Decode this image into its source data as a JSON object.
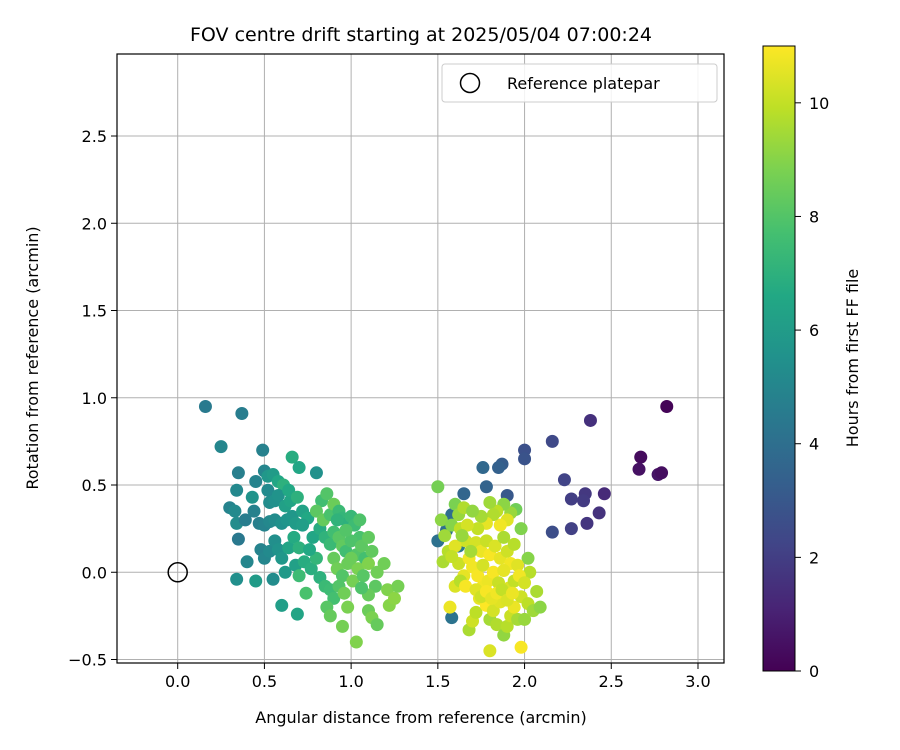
{
  "chart_data": {
    "type": "scatter",
    "title": "FOV centre drift starting at 2025/05/04 07:00:24",
    "xlabel": "Angular distance from reference (arcmin)",
    "ylabel": "Rotation from reference (arcmin)",
    "xlim": [
      -0.35,
      3.15
    ],
    "ylim": [
      -0.52,
      2.97
    ],
    "xticks": [
      0.0,
      0.5,
      1.0,
      1.5,
      2.0,
      2.5,
      3.0
    ],
    "xtick_labels": [
      "0.0",
      "0.5",
      "1.0",
      "1.5",
      "2.0",
      "2.5",
      "3.0"
    ],
    "yticks": [
      -0.5,
      0.0,
      0.5,
      1.0,
      1.5,
      2.0,
      2.5
    ],
    "ytick_labels": [
      "−0.5",
      "0.0",
      "0.5",
      "1.0",
      "1.5",
      "2.0",
      "2.5"
    ],
    "grid": true,
    "legend": {
      "placement": "top-right",
      "label": "Reference platepar"
    },
    "reference_marker": {
      "x": 0.0,
      "y": 0.0
    },
    "colorbar": {
      "label": "Hours from first FF file",
      "colormap": "viridis",
      "range": [
        0,
        11
      ],
      "ticks": [
        0,
        2,
        4,
        6,
        8,
        10
      ],
      "tick_labels": [
        "0",
        "2",
        "4",
        "6",
        "8",
        "10"
      ]
    },
    "points": [
      {
        "x": 2.82,
        "y": 0.95,
        "c": 0.1
      },
      {
        "x": 2.67,
        "y": 0.66,
        "c": 0.3
      },
      {
        "x": 2.66,
        "y": 0.59,
        "c": 0.5
      },
      {
        "x": 2.77,
        "y": 0.56,
        "c": 0.6
      },
      {
        "x": 2.79,
        "y": 0.57,
        "c": 0.4
      },
      {
        "x": 2.46,
        "y": 0.45,
        "c": 1.3
      },
      {
        "x": 2.38,
        "y": 0.87,
        "c": 1.5
      },
      {
        "x": 2.43,
        "y": 0.34,
        "c": 1.6
      },
      {
        "x": 2.36,
        "y": 0.28,
        "c": 1.7
      },
      {
        "x": 2.35,
        "y": 0.45,
        "c": 1.8
      },
      {
        "x": 2.34,
        "y": 0.41,
        "c": 1.9
      },
      {
        "x": 2.27,
        "y": 0.42,
        "c": 2.0
      },
      {
        "x": 2.27,
        "y": 0.25,
        "c": 2.1
      },
      {
        "x": 2.23,
        "y": 0.53,
        "c": 2.2
      },
      {
        "x": 2.16,
        "y": 0.75,
        "c": 2.4
      },
      {
        "x": 2.16,
        "y": 0.23,
        "c": 2.6
      },
      {
        "x": 2.0,
        "y": 0.7,
        "c": 2.7
      },
      {
        "x": 2.0,
        "y": 0.65,
        "c": 2.8
      },
      {
        "x": 1.9,
        "y": 0.44,
        "c": 3.0
      },
      {
        "x": 1.87,
        "y": 0.62,
        "c": 3.2
      },
      {
        "x": 1.85,
        "y": 0.6,
        "c": 3.4
      },
      {
        "x": 1.78,
        "y": 0.49,
        "c": 3.5
      },
      {
        "x": 1.76,
        "y": 0.6,
        "c": 3.7
      },
      {
        "x": 1.65,
        "y": 0.45,
        "c": 3.6
      },
      {
        "x": 1.58,
        "y": 0.33,
        "c": 3.9
      },
      {
        "x": 1.55,
        "y": 0.24,
        "c": 4.0
      },
      {
        "x": 1.5,
        "y": 0.18,
        "c": 4.1
      },
      {
        "x": 1.58,
        "y": -0.26,
        "c": 4.2
      },
      {
        "x": 1.62,
        "y": 0.15,
        "c": 4.3
      },
      {
        "x": 0.16,
        "y": 0.95,
        "c": 4.5
      },
      {
        "x": 0.37,
        "y": 0.91,
        "c": 4.6
      },
      {
        "x": 0.49,
        "y": 0.7,
        "c": 4.8
      },
      {
        "x": 0.35,
        "y": 0.57,
        "c": 4.7
      },
      {
        "x": 0.25,
        "y": 0.72,
        "c": 5.0
      },
      {
        "x": 0.34,
        "y": 0.47,
        "c": 5.1
      },
      {
        "x": 0.3,
        "y": 0.37,
        "c": 4.9
      },
      {
        "x": 0.33,
        "y": 0.35,
        "c": 5.2
      },
      {
        "x": 0.34,
        "y": 0.28,
        "c": 5.3
      },
      {
        "x": 0.35,
        "y": 0.19,
        "c": 4.4
      },
      {
        "x": 0.39,
        "y": 0.3,
        "c": 4.6
      },
      {
        "x": 0.4,
        "y": 0.06,
        "c": 5.0
      },
      {
        "x": 0.34,
        "y": -0.04,
        "c": 5.4
      },
      {
        "x": 0.45,
        "y": -0.05,
        "c": 6.0
      },
      {
        "x": 0.43,
        "y": 0.43,
        "c": 5.6
      },
      {
        "x": 0.44,
        "y": 0.35,
        "c": 4.8
      },
      {
        "x": 0.45,
        "y": 0.52,
        "c": 4.9
      },
      {
        "x": 0.5,
        "y": 0.58,
        "c": 5.0
      },
      {
        "x": 0.52,
        "y": 0.47,
        "c": 5.2
      },
      {
        "x": 0.52,
        "y": 0.55,
        "c": 5.8
      },
      {
        "x": 0.55,
        "y": 0.56,
        "c": 6.0
      },
      {
        "x": 0.58,
        "y": 0.52,
        "c": 6.5
      },
      {
        "x": 0.61,
        "y": 0.5,
        "c": 7.0
      },
      {
        "x": 0.53,
        "y": 0.4,
        "c": 5.3
      },
      {
        "x": 0.56,
        "y": 0.41,
        "c": 5.5
      },
      {
        "x": 0.58,
        "y": 0.44,
        "c": 5.6
      },
      {
        "x": 0.47,
        "y": 0.28,
        "c": 4.7
      },
      {
        "x": 0.5,
        "y": 0.27,
        "c": 4.9
      },
      {
        "x": 0.53,
        "y": 0.29,
        "c": 5.1
      },
      {
        "x": 0.56,
        "y": 0.3,
        "c": 5.3
      },
      {
        "x": 0.6,
        "y": 0.28,
        "c": 5.5
      },
      {
        "x": 0.63,
        "y": 0.3,
        "c": 5.7
      },
      {
        "x": 0.66,
        "y": 0.32,
        "c": 5.8
      },
      {
        "x": 0.68,
        "y": 0.28,
        "c": 6.0
      },
      {
        "x": 0.62,
        "y": 0.38,
        "c": 6.2
      },
      {
        "x": 0.65,
        "y": 0.41,
        "c": 6.4
      },
      {
        "x": 0.64,
        "y": 0.47,
        "c": 6.6
      },
      {
        "x": 0.69,
        "y": 0.43,
        "c": 7.0
      },
      {
        "x": 0.66,
        "y": 0.66,
        "c": 6.8
      },
      {
        "x": 0.7,
        "y": 0.6,
        "c": 6.5
      },
      {
        "x": 0.8,
        "y": 0.57,
        "c": 5.5
      },
      {
        "x": 0.72,
        "y": 0.35,
        "c": 6.3
      },
      {
        "x": 0.75,
        "y": 0.31,
        "c": 6.6
      },
      {
        "x": 0.48,
        "y": 0.13,
        "c": 4.9
      },
      {
        "x": 0.5,
        "y": 0.08,
        "c": 5.0
      },
      {
        "x": 0.53,
        "y": 0.12,
        "c": 5.2
      },
      {
        "x": 0.56,
        "y": 0.18,
        "c": 5.4
      },
      {
        "x": 0.58,
        "y": 0.13,
        "c": 5.6
      },
      {
        "x": 0.6,
        "y": 0.08,
        "c": 5.8
      },
      {
        "x": 0.62,
        "y": 0.0,
        "c": 5.9
      },
      {
        "x": 0.55,
        "y": -0.04,
        "c": 5.3
      },
      {
        "x": 0.6,
        "y": -0.19,
        "c": 6.1
      },
      {
        "x": 0.64,
        "y": 0.14,
        "c": 6.4
      },
      {
        "x": 0.67,
        "y": 0.2,
        "c": 6.7
      },
      {
        "x": 0.7,
        "y": 0.14,
        "c": 7.0
      },
      {
        "x": 0.68,
        "y": 0.04,
        "c": 6.2
      },
      {
        "x": 0.7,
        "y": -0.02,
        "c": 7.5
      },
      {
        "x": 0.73,
        "y": 0.06,
        "c": 6.8
      },
      {
        "x": 0.74,
        "y": -0.12,
        "c": 7.8
      },
      {
        "x": 0.69,
        "y": -0.24,
        "c": 6.4
      },
      {
        "x": 0.77,
        "y": 0.02,
        "c": 6.9
      },
      {
        "x": 0.8,
        "y": 0.08,
        "c": 7.2
      },
      {
        "x": 0.82,
        "y": -0.03,
        "c": 7.0
      },
      {
        "x": 0.85,
        "y": -0.08,
        "c": 7.4
      },
      {
        "x": 0.78,
        "y": 0.2,
        "c": 6.5
      },
      {
        "x": 0.82,
        "y": 0.25,
        "c": 6.8
      },
      {
        "x": 0.85,
        "y": 0.2,
        "c": 7.1
      },
      {
        "x": 0.88,
        "y": 0.16,
        "c": 7.4
      },
      {
        "x": 0.9,
        "y": 0.23,
        "c": 7.6
      },
      {
        "x": 0.83,
        "y": 0.41,
        "c": 7.6
      },
      {
        "x": 0.86,
        "y": 0.45,
        "c": 8.0
      },
      {
        "x": 0.8,
        "y": 0.35,
        "c": 8.2
      },
      {
        "x": 0.84,
        "y": 0.3,
        "c": 8.4
      },
      {
        "x": 0.88,
        "y": 0.33,
        "c": 7.8
      },
      {
        "x": 0.9,
        "y": 0.39,
        "c": 8.5
      },
      {
        "x": 0.93,
        "y": 0.35,
        "c": 7.4
      },
      {
        "x": 0.95,
        "y": 0.31,
        "c": 7.2
      },
      {
        "x": 0.98,
        "y": 0.28,
        "c": 7.0
      },
      {
        "x": 1.0,
        "y": 0.32,
        "c": 7.3
      },
      {
        "x": 1.02,
        "y": 0.27,
        "c": 7.5
      },
      {
        "x": 1.05,
        "y": 0.2,
        "c": 7.8
      },
      {
        "x": 0.93,
        "y": 0.2,
        "c": 8.1
      },
      {
        "x": 0.95,
        "y": 0.15,
        "c": 8.3
      },
      {
        "x": 0.97,
        "y": 0.12,
        "c": 7.6
      },
      {
        "x": 1.0,
        "y": 0.18,
        "c": 7.9
      },
      {
        "x": 1.03,
        "y": 0.1,
        "c": 8.0
      },
      {
        "x": 1.06,
        "y": 0.15,
        "c": 8.2
      },
      {
        "x": 1.08,
        "y": 0.08,
        "c": 7.7
      },
      {
        "x": 0.9,
        "y": 0.08,
        "c": 8.4
      },
      {
        "x": 0.92,
        "y": 0.02,
        "c": 8.6
      },
      {
        "x": 0.95,
        "y": -0.02,
        "c": 8.0
      },
      {
        "x": 0.98,
        "y": 0.05,
        "c": 8.5
      },
      {
        "x": 1.01,
        "y": -0.05,
        "c": 8.7
      },
      {
        "x": 1.04,
        "y": 0.02,
        "c": 8.8
      },
      {
        "x": 1.07,
        "y": -0.02,
        "c": 8.1
      },
      {
        "x": 1.1,
        "y": 0.05,
        "c": 8.9
      },
      {
        "x": 1.12,
        "y": 0.12,
        "c": 8.3
      },
      {
        "x": 1.15,
        "y": 0.0,
        "c": 8.6
      },
      {
        "x": 1.14,
        "y": -0.08,
        "c": 8.2
      },
      {
        "x": 1.1,
        "y": -0.13,
        "c": 8.4
      },
      {
        "x": 1.06,
        "y": -0.09,
        "c": 7.9
      },
      {
        "x": 0.88,
        "y": -0.1,
        "c": 7.5
      },
      {
        "x": 0.9,
        "y": -0.15,
        "c": 7.7
      },
      {
        "x": 0.93,
        "y": -0.08,
        "c": 8.0
      },
      {
        "x": 0.96,
        "y": -0.12,
        "c": 8.6
      },
      {
        "x": 0.98,
        "y": -0.2,
        "c": 8.8
      },
      {
        "x": 0.86,
        "y": -0.2,
        "c": 8.1
      },
      {
        "x": 0.88,
        "y": -0.25,
        "c": 8.4
      },
      {
        "x": 0.95,
        "y": -0.31,
        "c": 8.7
      },
      {
        "x": 1.03,
        "y": -0.4,
        "c": 8.9
      },
      {
        "x": 1.1,
        "y": -0.22,
        "c": 8.5
      },
      {
        "x": 1.12,
        "y": -0.26,
        "c": 8.8
      },
      {
        "x": 1.15,
        "y": -0.3,
        "c": 8.4
      },
      {
        "x": 1.19,
        "y": 0.05,
        "c": 8.6
      },
      {
        "x": 1.21,
        "y": -0.1,
        "c": 8.9
      },
      {
        "x": 1.22,
        "y": -0.19,
        "c": 9.0
      },
      {
        "x": 1.25,
        "y": -0.15,
        "c": 9.1
      },
      {
        "x": 1.27,
        "y": -0.08,
        "c": 8.7
      },
      {
        "x": 1.0,
        "y": 0.08,
        "c": 8.5
      },
      {
        "x": 0.97,
        "y": 0.24,
        "c": 8.0
      },
      {
        "x": 1.05,
        "y": 0.3,
        "c": 7.9
      },
      {
        "x": 1.1,
        "y": 0.2,
        "c": 8.3
      },
      {
        "x": 0.92,
        "y": 0.3,
        "c": 7.1
      },
      {
        "x": 0.76,
        "y": 0.13,
        "c": 6.6
      },
      {
        "x": 0.72,
        "y": 0.27,
        "c": 6.1
      },
      {
        "x": 1.5,
        "y": 0.49,
        "c": 8.7
      },
      {
        "x": 1.52,
        "y": 0.3,
        "c": 9.1
      },
      {
        "x": 1.54,
        "y": 0.21,
        "c": 9.4
      },
      {
        "x": 1.56,
        "y": 0.12,
        "c": 9.8
      },
      {
        "x": 1.53,
        "y": 0.06,
        "c": 9.6
      },
      {
        "x": 1.58,
        "y": 0.27,
        "c": 9.0
      },
      {
        "x": 1.6,
        "y": 0.39,
        "c": 8.8
      },
      {
        "x": 1.62,
        "y": 0.33,
        "c": 9.3
      },
      {
        "x": 1.65,
        "y": 0.37,
        "c": 9.7
      },
      {
        "x": 1.63,
        "y": 0.25,
        "c": 9.9
      },
      {
        "x": 1.66,
        "y": 0.18,
        "c": 10.2
      },
      {
        "x": 1.6,
        "y": 0.15,
        "c": 10.5
      },
      {
        "x": 1.62,
        "y": 0.05,
        "c": 10.1
      },
      {
        "x": 1.65,
        "y": -0.02,
        "c": 10.6
      },
      {
        "x": 1.68,
        "y": 0.08,
        "c": 10.8
      },
      {
        "x": 1.6,
        "y": -0.08,
        "c": 10.4
      },
      {
        "x": 1.63,
        "y": -0.05,
        "c": 9.8
      },
      {
        "x": 1.66,
        "y": -0.08,
        "c": 10.9
      },
      {
        "x": 1.57,
        "y": -0.2,
        "c": 10.7
      },
      {
        "x": 1.68,
        "y": -0.33,
        "c": 9.6
      },
      {
        "x": 1.7,
        "y": -0.28,
        "c": 10.2
      },
      {
        "x": 1.72,
        "y": -0.23,
        "c": 9.9
      },
      {
        "x": 1.74,
        "y": -0.15,
        "c": 10.6
      },
      {
        "x": 1.76,
        "y": -0.08,
        "c": 10.8
      },
      {
        "x": 1.78,
        "y": -0.19,
        "c": 11.0
      },
      {
        "x": 1.8,
        "y": -0.27,
        "c": 9.5
      },
      {
        "x": 1.82,
        "y": -0.22,
        "c": 10.3
      },
      {
        "x": 1.84,
        "y": -0.3,
        "c": 9.7
      },
      {
        "x": 1.86,
        "y": -0.17,
        "c": 10.5
      },
      {
        "x": 1.88,
        "y": -0.36,
        "c": 9.2
      },
      {
        "x": 1.9,
        "y": -0.31,
        "c": 9.8
      },
      {
        "x": 1.92,
        "y": -0.25,
        "c": 10.1
      },
      {
        "x": 1.8,
        "y": -0.45,
        "c": 10.4
      },
      {
        "x": 1.98,
        "y": -0.43,
        "c": 10.9
      },
      {
        "x": 1.96,
        "y": -0.27,
        "c": 9.5
      },
      {
        "x": 2.0,
        "y": -0.27,
        "c": 9.3
      },
      {
        "x": 1.94,
        "y": -0.2,
        "c": 10.7
      },
      {
        "x": 1.98,
        "y": -0.14,
        "c": 10.2
      },
      {
        "x": 2.02,
        "y": -0.18,
        "c": 9.9
      },
      {
        "x": 2.05,
        "y": -0.22,
        "c": 9.4
      },
      {
        "x": 2.07,
        "y": -0.11,
        "c": 9.6
      },
      {
        "x": 2.09,
        "y": -0.2,
        "c": 9.1
      },
      {
        "x": 2.02,
        "y": 0.08,
        "c": 9.0
      },
      {
        "x": 2.03,
        "y": 0.0,
        "c": 9.8
      },
      {
        "x": 1.98,
        "y": 0.25,
        "c": 8.9
      },
      {
        "x": 1.95,
        "y": 0.36,
        "c": 8.6
      },
      {
        "x": 1.92,
        "y": 0.34,
        "c": 9.3
      },
      {
        "x": 1.88,
        "y": 0.39,
        "c": 9.1
      },
      {
        "x": 1.9,
        "y": 0.3,
        "c": 10.5
      },
      {
        "x": 1.86,
        "y": 0.27,
        "c": 10.8
      },
      {
        "x": 1.84,
        "y": 0.35,
        "c": 9.9
      },
      {
        "x": 1.8,
        "y": 0.4,
        "c": 9.4
      },
      {
        "x": 1.82,
        "y": 0.33,
        "c": 9.7
      },
      {
        "x": 1.78,
        "y": 0.28,
        "c": 10.6
      },
      {
        "x": 1.75,
        "y": 0.32,
        "c": 9.5
      },
      {
        "x": 1.73,
        "y": 0.25,
        "c": 10.0
      },
      {
        "x": 1.7,
        "y": 0.35,
        "c": 9.2
      },
      {
        "x": 1.72,
        "y": 0.17,
        "c": 10.3
      },
      {
        "x": 1.75,
        "y": 0.12,
        "c": 10.7
      },
      {
        "x": 1.78,
        "y": 0.18,
        "c": 10.1
      },
      {
        "x": 1.8,
        "y": 0.1,
        "c": 10.9
      },
      {
        "x": 1.83,
        "y": 0.15,
        "c": 10.4
      },
      {
        "x": 1.86,
        "y": 0.08,
        "c": 10.6
      },
      {
        "x": 1.88,
        "y": 0.2,
        "c": 9.6
      },
      {
        "x": 1.9,
        "y": 0.12,
        "c": 10.2
      },
      {
        "x": 1.92,
        "y": 0.05,
        "c": 10.8
      },
      {
        "x": 1.94,
        "y": 0.16,
        "c": 9.8
      },
      {
        "x": 1.96,
        "y": 0.04,
        "c": 10.5
      },
      {
        "x": 1.7,
        "y": 0.03,
        "c": 10.8
      },
      {
        "x": 1.73,
        "y": -0.02,
        "c": 10.9
      },
      {
        "x": 1.76,
        "y": 0.04,
        "c": 10.3
      },
      {
        "x": 1.79,
        "y": -0.05,
        "c": 10.7
      },
      {
        "x": 1.82,
        "y": 0.0,
        "c": 10.9
      },
      {
        "x": 1.85,
        "y": -0.06,
        "c": 10.1
      },
      {
        "x": 1.88,
        "y": 0.01,
        "c": 10.6
      },
      {
        "x": 1.91,
        "y": -0.09,
        "c": 10.4
      },
      {
        "x": 1.94,
        "y": -0.05,
        "c": 10.0
      },
      {
        "x": 1.97,
        "y": -0.02,
        "c": 10.8
      },
      {
        "x": 2.0,
        "y": -0.06,
        "c": 10.3
      },
      {
        "x": 1.72,
        "y": -0.1,
        "c": 10.5
      },
      {
        "x": 1.75,
        "y": -0.14,
        "c": 10.2
      },
      {
        "x": 1.78,
        "y": -0.11,
        "c": 10.9
      },
      {
        "x": 1.81,
        "y": -0.15,
        "c": 10.6
      },
      {
        "x": 1.84,
        "y": -0.12,
        "c": 10.8
      },
      {
        "x": 1.87,
        "y": -0.1,
        "c": 10.0
      },
      {
        "x": 1.9,
        "y": -0.16,
        "c": 10.4
      },
      {
        "x": 1.93,
        "y": -0.12,
        "c": 10.7
      },
      {
        "x": 1.67,
        "y": 0.27,
        "c": 10.3
      },
      {
        "x": 1.69,
        "y": 0.12,
        "c": 9.5
      },
      {
        "x": 1.64,
        "y": 0.21,
        "c": 9.3
      },
      {
        "x": 1.58,
        "y": 0.09,
        "c": 10.0
      }
    ]
  }
}
